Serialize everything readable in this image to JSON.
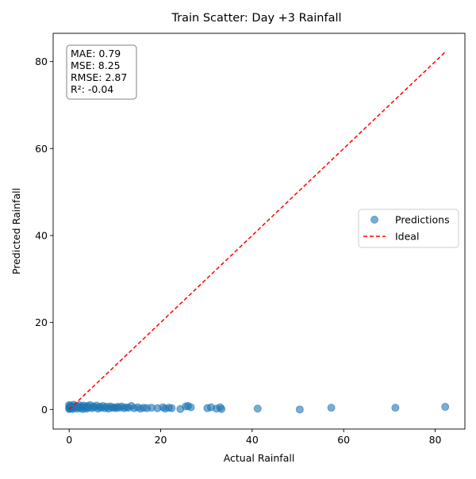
{
  "chart_data": {
    "type": "scatter",
    "title": "Train Scatter: Day +3 Rainfall",
    "xlabel": "Actual Rainfall",
    "ylabel": "Predicted Rainfall",
    "xlim": [
      -3.5,
      86.5
    ],
    "ylim": [
      -4.5,
      86.5
    ],
    "xticks": [
      0,
      20,
      40,
      60,
      80
    ],
    "yticks": [
      0,
      20,
      40,
      60,
      80
    ],
    "grid": false,
    "legend_position": "center-right",
    "colors": {
      "points": "#1f77b4",
      "ideal": "#ff0000"
    },
    "stats": [
      "MAE: 0.79",
      "MSE: 8.25",
      "RMSE: 2.87",
      "R²: -0.04"
    ],
    "series": [
      {
        "name": "Predictions",
        "kind": "scatter",
        "points": [
          [
            0,
            0.1
          ],
          [
            0,
            0.5
          ],
          [
            0,
            1.0
          ],
          [
            0.1,
            0.2
          ],
          [
            0.2,
            0.6
          ],
          [
            0.3,
            0.9
          ],
          [
            0.5,
            0.3
          ],
          [
            0.6,
            0.7
          ],
          [
            0.8,
            0.1
          ],
          [
            1.0,
            0.5
          ],
          [
            1.0,
            1.1
          ],
          [
            1.3,
            0.4
          ],
          [
            1.5,
            0.8
          ],
          [
            1.8,
            0.2
          ],
          [
            2.0,
            0.6
          ],
          [
            2.2,
            1.0
          ],
          [
            2.5,
            0.3
          ],
          [
            2.8,
            0.7
          ],
          [
            3.0,
            0.1
          ],
          [
            3.2,
            0.9
          ],
          [
            3.5,
            0.5
          ],
          [
            3.8,
            0.2
          ],
          [
            4.0,
            0.8
          ],
          [
            4.3,
            0.4
          ],
          [
            4.6,
            1.0
          ],
          [
            5.0,
            0.3
          ],
          [
            5.3,
            0.7
          ],
          [
            5.6,
            0.5
          ],
          [
            6.0,
            0.9
          ],
          [
            6.3,
            0.2
          ],
          [
            6.7,
            0.6
          ],
          [
            7.0,
            0.4
          ],
          [
            7.4,
            0.8
          ],
          [
            7.8,
            0.3
          ],
          [
            8.2,
            0.6
          ],
          [
            8.6,
            0.2
          ],
          [
            9.0,
            0.7
          ],
          [
            9.4,
            0.4
          ],
          [
            9.8,
            0.5
          ],
          [
            10.2,
            0.3
          ],
          [
            10.6,
            0.6
          ],
          [
            11.0,
            0.4
          ],
          [
            11.5,
            0.7
          ],
          [
            12.0,
            0.3
          ],
          [
            12.5,
            0.5
          ],
          [
            13.0,
            0.4
          ],
          [
            13.6,
            0.8
          ],
          [
            14.2,
            0.3
          ],
          [
            15.0,
            0.5
          ],
          [
            15.6,
            0.2
          ],
          [
            16.3,
            0.4
          ],
          [
            17.0,
            0.3
          ],
          [
            18.0,
            0.4
          ],
          [
            19.3,
            0.3
          ],
          [
            20.5,
            0.5
          ],
          [
            21.0,
            0.2
          ],
          [
            21.8,
            0.4
          ],
          [
            22.4,
            0.3
          ],
          [
            24.3,
            0.1
          ],
          [
            25.5,
            0.7
          ],
          [
            26.0,
            0.8
          ],
          [
            26.6,
            0.5
          ],
          [
            30.2,
            0.3
          ],
          [
            31.0,
            0.5
          ],
          [
            32.2,
            0.2
          ],
          [
            33.0,
            0.5
          ],
          [
            33.3,
            0.1
          ],
          [
            41.2,
            0.2
          ],
          [
            50.4,
            0.0
          ],
          [
            57.3,
            0.4
          ],
          [
            71.3,
            0.4
          ],
          [
            82.2,
            0.6
          ]
        ]
      },
      {
        "name": "Ideal",
        "kind": "line",
        "points": [
          [
            0,
            0
          ],
          [
            82.2,
            82.2
          ]
        ]
      }
    ]
  }
}
